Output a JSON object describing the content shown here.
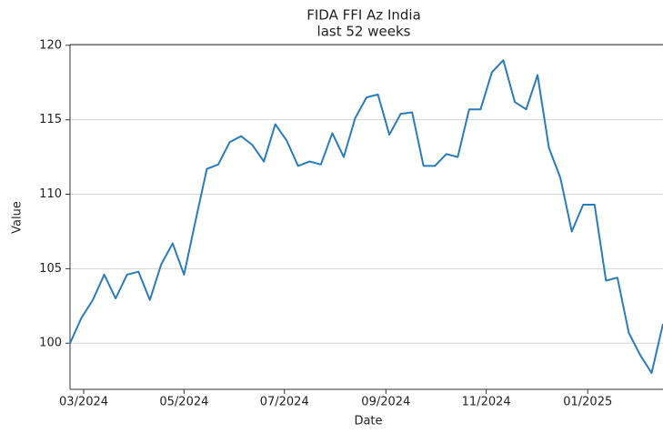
{
  "chart_data": {
    "type": "line",
    "title": "FIDA FFI Az India",
    "subtitle": "last 52 weeks",
    "x_label": "Date",
    "y_label": "Value",
    "categories": [
      null,
      null,
      null,
      null,
      null,
      null,
      null,
      null,
      null,
      null,
      null,
      null,
      null,
      null,
      null,
      null,
      null,
      null,
      null,
      null,
      null,
      null,
      null,
      null,
      null,
      null,
      null,
      null,
      null,
      null,
      null,
      null,
      null,
      null,
      null,
      null,
      null,
      null,
      null,
      null,
      null,
      null,
      null,
      null,
      null,
      null,
      null,
      null,
      null,
      null,
      null,
      null,
      null
    ],
    "values": [
      100.0,
      101.7,
      102.9,
      104.6,
      103.0,
      104.6,
      104.8,
      102.9,
      105.3,
      106.7,
      104.6,
      108.2,
      111.7,
      112.0,
      113.5,
      113.9,
      113.3,
      112.2,
      114.7,
      113.6,
      111.9,
      112.2,
      112.0,
      114.1,
      112.5,
      115.1,
      116.5,
      116.7,
      114.0,
      115.4,
      115.5,
      111.9,
      111.9,
      112.7,
      112.5,
      115.7,
      115.7,
      118.2,
      119.0,
      116.2,
      115.7,
      118.0,
      113.1,
      111.1,
      107.5,
      109.3,
      109.3,
      104.2,
      104.4,
      100.7,
      99.2,
      98.0,
      101.3
    ],
    "color": "#2b7bba",
    "xlim": [
      0,
      52
    ],
    "xticks": [
      {
        "value": 1.2,
        "label": "03/2024"
      },
      {
        "value": 10.0,
        "label": "05/2024"
      },
      {
        "value": 18.8,
        "label": "07/2024"
      },
      {
        "value": 27.7,
        "label": "09/2024"
      },
      {
        "value": 36.5,
        "label": "11/2024"
      },
      {
        "value": 45.4,
        "label": "01/2025"
      }
    ],
    "ylim": [
      96.9,
      120.05
    ],
    "yticks": [
      100,
      105,
      110,
      115,
      120
    ],
    "grid": true
  }
}
